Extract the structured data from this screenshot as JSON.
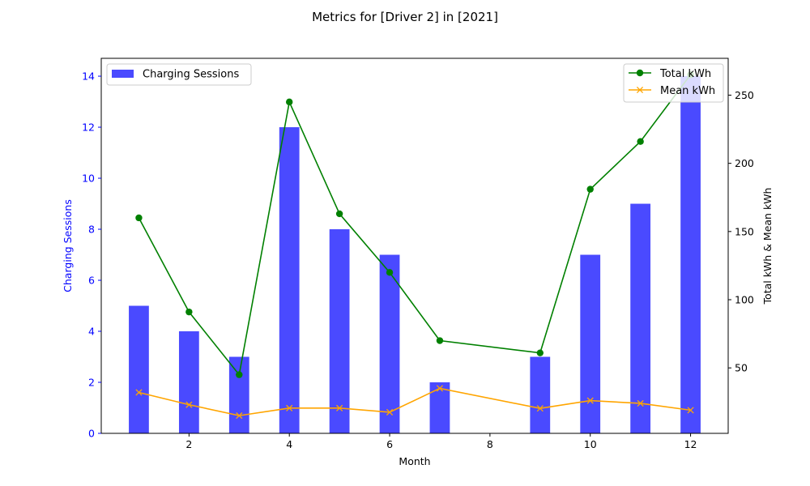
{
  "chart_data": {
    "type": "bar+line",
    "title": "Metrics for [Driver 2] in [2021]",
    "xlabel": "Month",
    "ylabel_left": "Charging Sessions",
    "ylabel_right": "Total kWh & Mean kWh",
    "x_ticks": [
      2,
      4,
      6,
      8,
      10,
      12
    ],
    "xlim": [
      0.25,
      12.75
    ],
    "left_axis": {
      "ylim": [
        0,
        14.7
      ],
      "ticks": [
        0,
        2,
        4,
        6,
        8,
        10,
        12,
        14
      ],
      "color": "#0000ff"
    },
    "right_axis": {
      "ylim": [
        2,
        277
      ],
      "ticks": [
        50,
        100,
        150,
        200,
        250
      ],
      "color": "#000000"
    },
    "bar_series": {
      "name": "Charging Sessions",
      "color": "#4a4aff",
      "months": [
        1,
        2,
        3,
        4,
        5,
        6,
        7,
        9,
        10,
        11,
        12
      ],
      "values": [
        5,
        4,
        3,
        12,
        8,
        7,
        2,
        3,
        7,
        9,
        14
      ]
    },
    "line_series": [
      {
        "name": "Total kWh",
        "color": "#008000",
        "marker": "circle",
        "months": [
          1,
          2,
          3,
          4,
          5,
          6,
          7,
          9,
          10,
          11,
          12
        ],
        "values": [
          160,
          91,
          45,
          245,
          163,
          120,
          70,
          61,
          181,
          216,
          265
        ]
      },
      {
        "name": "Mean kWh",
        "color": "#ffa500",
        "marker": "x",
        "months": [
          1,
          2,
          3,
          4,
          5,
          6,
          7,
          9,
          10,
          11,
          12
        ],
        "values": [
          32,
          23,
          15,
          20.5,
          20.5,
          17.5,
          35,
          20.3,
          26,
          24,
          19
        ]
      }
    ],
    "legends": [
      {
        "placement": "upper-left",
        "entries": [
          "Charging Sessions"
        ]
      },
      {
        "placement": "upper-right",
        "entries": [
          "Total kWh",
          "Mean kWh"
        ]
      }
    ]
  }
}
